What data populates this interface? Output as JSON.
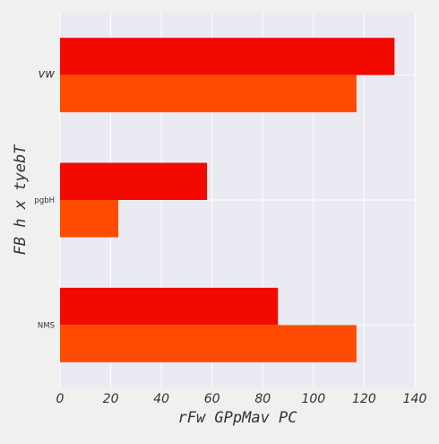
{
  "chart_data": {
    "type": "bar",
    "orientation": "horizontal",
    "categories": [
      "NMS",
      "pgbH",
      "vw"
    ],
    "series": [
      {
        "values": [
          86,
          58,
          132
        ],
        "color": "#f20a00"
      },
      {
        "values": [
          117,
          23,
          117
        ],
        "color": "#ff4b00"
      }
    ],
    "xlabel": "rFw GPpMav PC",
    "ylabel": "FB h x  tyebT",
    "xlim": [
      0,
      140
    ],
    "xticks": [
      "0",
      "20",
      "40",
      "60",
      "80",
      "100",
      "120",
      "140"
    ],
    "grid": true,
    "background": "#eaeaf2",
    "legend": "none"
  }
}
